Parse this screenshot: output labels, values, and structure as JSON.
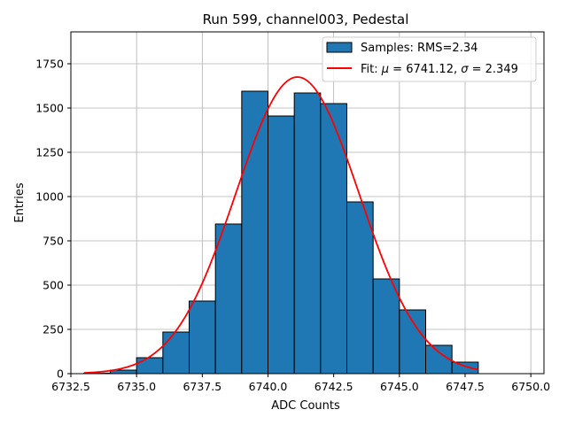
{
  "chart_data": {
    "type": "bar",
    "title": "Run 599, channel003, Pedestal",
    "xlabel": "ADC Counts",
    "ylabel": "Entries",
    "xlim": [
      6732.5,
      6750.5
    ],
    "ylim": [
      0,
      1930
    ],
    "xticks": [
      6732.5,
      6735.0,
      6737.5,
      6740.0,
      6742.5,
      6745.0,
      6747.5,
      6750.0
    ],
    "xtick_labels": [
      "6732.5",
      "6735.0",
      "6737.5",
      "6740.0",
      "6742.5",
      "6745.0",
      "6747.5",
      "6750.0"
    ],
    "yticks": [
      0,
      250,
      500,
      750,
      1000,
      1250,
      1500,
      1750
    ],
    "ytick_labels": [
      "0",
      "250",
      "500",
      "750",
      "1000",
      "1250",
      "1500",
      "1750"
    ],
    "grid": true,
    "legend_position": "top-right",
    "histogram": {
      "name": "Samples: RMS=2.34",
      "color": "#1f77b4",
      "bin_edges": [
        6733,
        6734,
        6735,
        6736,
        6737,
        6738,
        6739,
        6740,
        6741,
        6742,
        6743,
        6744,
        6745,
        6746,
        6747,
        6748
      ],
      "counts": [
        3,
        20,
        90,
        235,
        410,
        845,
        1595,
        1455,
        1585,
        1525,
        970,
        535,
        360,
        160,
        65
      ]
    },
    "fit": {
      "name_prefix": "Fit: ",
      "name_mu_symbol": "μ",
      "name_middle": " = 6741.12, ",
      "name_sigma_symbol": "σ",
      "name_suffix": " = 2.349",
      "color": "#ff0000",
      "mu": 6741.12,
      "sigma": 2.349,
      "amplitude": 1675,
      "x_range": [
        6733,
        6748
      ]
    }
  }
}
